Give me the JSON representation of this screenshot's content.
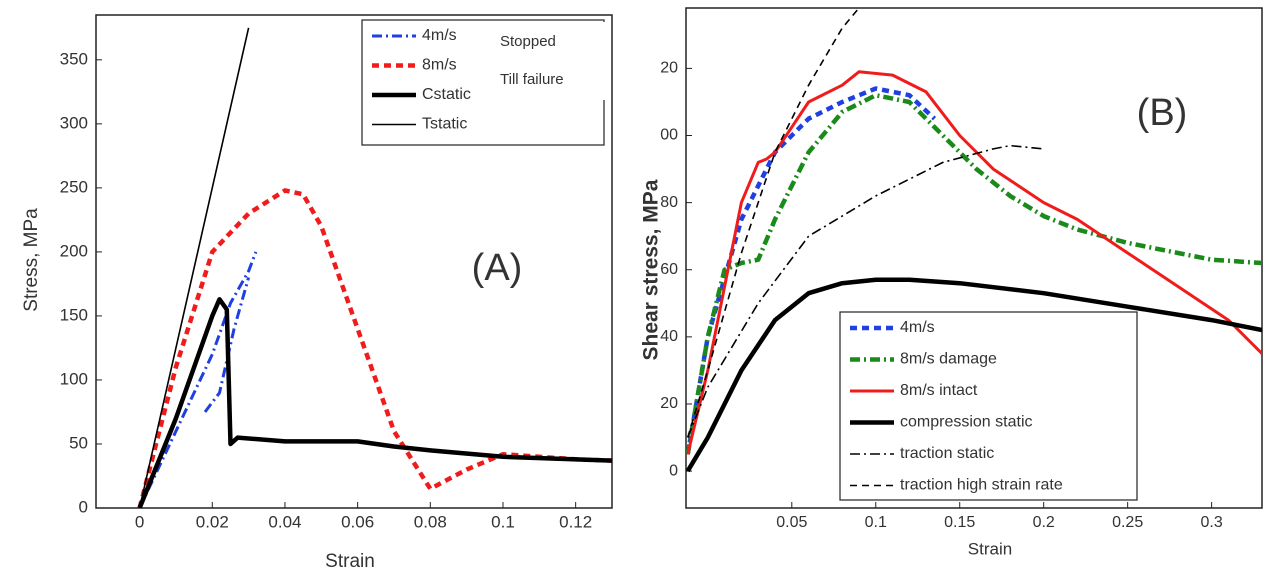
{
  "chart_data": [
    {
      "type": "line",
      "x_label": "Strain",
      "y_label": "Stress, MPa",
      "panel_label": "(A)",
      "annotations": [
        "Stopped",
        "Till failure"
      ],
      "xlim": [
        -0.012,
        0.13
      ],
      "ylim": [
        0,
        385
      ],
      "xticks": [
        0,
        0.02,
        0.04,
        0.06,
        0.08,
        0.1,
        0.12
      ],
      "yticks": [
        0,
        50,
        100,
        150,
        200,
        250,
        300,
        350
      ],
      "grid": false,
      "legend": "upper right",
      "series": [
        {
          "name": "4m/s",
          "color": "#1f3fe0",
          "style": "dash-dot",
          "weight": "medium",
          "x": [
            0,
            0.01,
            0.02,
            0.025,
            0.03,
            0.032,
            null,
            0.018,
            0.022,
            0.026,
            0.03
          ],
          "values": [
            0,
            60,
            120,
            160,
            185,
            200,
            null,
            75,
            90,
            140,
            180
          ]
        },
        {
          "name": "8m/s",
          "color": "#f01c1c",
          "style": "dashed",
          "weight": "thick",
          "x": [
            0,
            0.01,
            0.02,
            0.03,
            0.04,
            0.045,
            0.05,
            0.06,
            0.07,
            0.08,
            0.09,
            0.1,
            0.11,
            0.12,
            0.13
          ],
          "values": [
            0,
            110,
            200,
            230,
            248,
            245,
            220,
            140,
            60,
            15,
            30,
            42,
            40,
            38,
            37
          ]
        },
        {
          "name": "Cstatic",
          "color": "#000000",
          "style": "solid",
          "weight": "thick",
          "x": [
            0,
            0.01,
            0.02,
            0.022,
            0.024,
            0.025,
            0.027,
            0.04,
            0.06,
            0.07,
            0.08,
            0.1,
            0.13
          ],
          "values": [
            0,
            70,
            150,
            163,
            155,
            50,
            55,
            52,
            52,
            48,
            45,
            40,
            37
          ]
        },
        {
          "name": "Tstatic",
          "color": "#000000",
          "style": "solid",
          "weight": "thin",
          "x": [
            0,
            0.03
          ],
          "values": [
            0,
            375
          ]
        }
      ]
    },
    {
      "type": "line",
      "x_label": "Strain",
      "y_label": "Shear stress, MPa",
      "panel_label": "(B)",
      "xlim": [
        -0.013,
        0.33
      ],
      "ylim": [
        -11,
        138
      ],
      "xticks": [
        0.05,
        0.1,
        0.15,
        0.2,
        0.25,
        0.3
      ],
      "yticks": [
        0,
        20,
        40,
        60,
        80,
        {
          "value": 100,
          "label": "00"
        },
        {
          "value": 120,
          "label": "20"
        }
      ],
      "grid": false,
      "legend": "lower left",
      "series": [
        {
          "name": "4m/s",
          "color": "#1f3fe0",
          "style": "dashed",
          "weight": "thick",
          "x": [
            -0.012,
            0,
            0.02,
            0.04,
            0.06,
            0.08,
            0.1,
            0.12,
            0.135
          ],
          "values": [
            5,
            40,
            75,
            95,
            105,
            110,
            114,
            112,
            105
          ]
        },
        {
          "name": "8m/s damage",
          "color": "#1a8a1a",
          "style": "dash-dot",
          "weight": "thick",
          "x": [
            -0.012,
            0,
            0.01,
            0.02,
            0.03,
            0.04,
            0.06,
            0.08,
            0.1,
            0.12,
            0.14,
            0.16,
            0.18,
            0.2,
            0.22,
            0.25,
            0.28,
            0.3,
            0.33
          ],
          "values": [
            5,
            40,
            60,
            62,
            63,
            75,
            95,
            107,
            112,
            110,
            100,
            90,
            82,
            76,
            72,
            68,
            65,
            63,
            62
          ]
        },
        {
          "name": "8m/s intact",
          "color": "#f01c1c",
          "style": "solid",
          "weight": "medium",
          "x": [
            -0.012,
            0,
            0.02,
            0.03,
            0.035,
            0.04,
            0.06,
            0.08,
            0.09,
            0.11,
            0.13,
            0.15,
            0.17,
            0.2,
            0.22,
            0.25,
            0.28,
            0.31,
            0.33
          ],
          "values": [
            5,
            30,
            80,
            92,
            93,
            95,
            110,
            115,
            119,
            118,
            113,
            100,
            90,
            80,
            75,
            65,
            55,
            45,
            35
          ]
        },
        {
          "name": "compression static",
          "color": "#000000",
          "style": "solid",
          "weight": "thick",
          "x": [
            -0.012,
            0,
            0.02,
            0.04,
            0.06,
            0.08,
            0.1,
            0.12,
            0.15,
            0.2,
            0.25,
            0.3,
            0.33
          ],
          "values": [
            0,
            10,
            30,
            45,
            53,
            56,
            57,
            57,
            56,
            53,
            49,
            45,
            42
          ]
        },
        {
          "name": "traction static",
          "color": "#000000",
          "style": "dash-dot",
          "weight": "thin",
          "x": [
            -0.012,
            0,
            0.03,
            0.06,
            0.1,
            0.14,
            0.17,
            0.18,
            0.2
          ],
          "values": [
            10,
            25,
            50,
            70,
            82,
            92,
            96,
            97,
            96
          ]
        },
        {
          "name": "traction high strain rate",
          "color": "#000000",
          "style": "dashed",
          "weight": "thin",
          "x": [
            -0.012,
            0,
            0.02,
            0.04,
            0.06,
            0.08,
            0.09
          ],
          "values": [
            10,
            30,
            65,
            95,
            115,
            132,
            138
          ]
        }
      ]
    }
  ]
}
